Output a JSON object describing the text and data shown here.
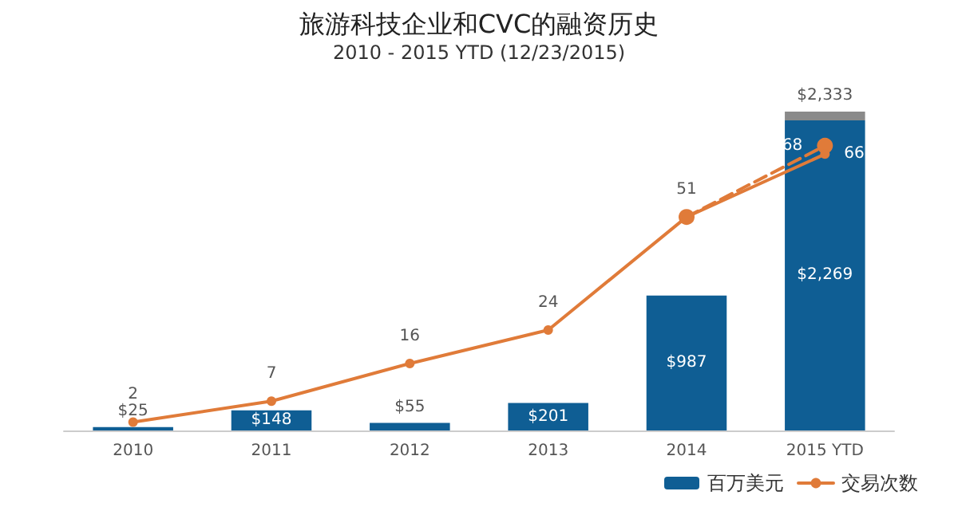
{
  "chart_data": {
    "type": "bar",
    "title": "旅游科技企业和CVC的融资历史",
    "subtitle": "2010 - 2015 YTD (12/23/2015)",
    "categories": [
      "2010",
      "2011",
      "2012",
      "2013",
      "2014",
      "2015 YTD"
    ],
    "stacked": true,
    "series": [
      {
        "name": "百万美元",
        "color": "#0f5e94",
        "values": [
          25,
          148,
          55,
          201,
          987,
          2269
        ],
        "value_labels": [
          "$25",
          "$148",
          "$55",
          "$201",
          "$987",
          "$2,269"
        ]
      },
      {
        "color": "#8a8a8a",
        "values": [
          null,
          null,
          null,
          null,
          null,
          64
        ]
      },
      {
        "name": "交易次数",
        "type": "line",
        "axis": "y2",
        "color": "#e07b39",
        "line_style": "solid",
        "marker": "circle",
        "values": [
          2,
          7,
          16,
          24,
          51,
          66
        ],
        "value_labels": [
          "2",
          "7",
          "16",
          "24",
          "51",
          "66"
        ]
      },
      {
        "type": "line",
        "axis": "y2",
        "color": "#e07b39",
        "line_style": "dashed",
        "marker": "circle",
        "values": [
          null,
          null,
          null,
          null,
          51,
          68
        ],
        "value_labels": [
          null,
          null,
          null,
          null,
          null,
          "68"
        ]
      }
    ],
    "totals": [
      null,
      null,
      null,
      null,
      null,
      "$2,333"
    ],
    "tick_labels": "x",
    "grid": false,
    "legend": "bottom right"
  }
}
